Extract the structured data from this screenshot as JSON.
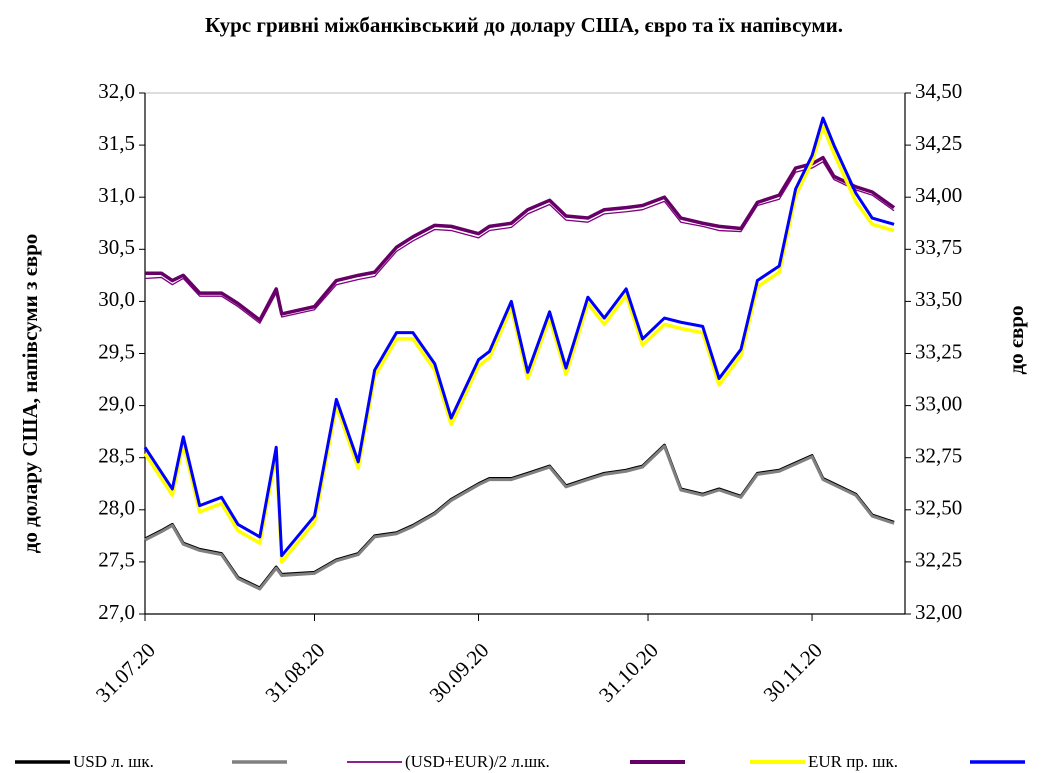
{
  "chart_data": {
    "type": "line",
    "title": "Курс гривні міжбанківський до долару США, євро та їх напівсуми.",
    "y_label": "до долару США, напівсуми з євро",
    "y2_label": "до євро",
    "x": [
      "2020-07-31",
      "2020-08-03",
      "2020-08-05",
      "2020-08-07",
      "2020-08-10",
      "2020-08-14",
      "2020-08-17",
      "2020-08-21",
      "2020-08-24",
      "2020-08-25",
      "2020-08-31",
      "2020-09-04",
      "2020-09-08",
      "2020-09-11",
      "2020-09-15",
      "2020-09-18",
      "2020-09-22",
      "2020-09-25",
      "2020-09-30",
      "2020-10-02",
      "2020-10-06",
      "2020-10-09",
      "2020-10-13",
      "2020-10-16",
      "2020-10-20",
      "2020-10-23",
      "2020-10-27",
      "2020-10-30",
      "2020-11-03",
      "2020-11-06",
      "2020-11-10",
      "2020-11-13",
      "2020-11-17",
      "2020-11-20",
      "2020-11-24",
      "2020-11-27",
      "2020-11-30",
      "2020-12-02",
      "2020-12-04",
      "2020-12-08",
      "2020-12-11",
      "2020-12-15"
    ],
    "xlim": [
      "2020-07-31",
      "2020-12-17"
    ],
    "xticks": [
      {
        "value": "2020-07-31",
        "label": "31.07.20"
      },
      {
        "value": "2020-08-31",
        "label": "31.08.20"
      },
      {
        "value": "2020-09-30",
        "label": "30.09.20"
      },
      {
        "value": "2020-10-31",
        "label": "31.10.20"
      },
      {
        "value": "2020-11-30",
        "label": "30.11.20"
      }
    ],
    "ylim": [
      27,
      32
    ],
    "yticks": [
      {
        "value": 27,
        "label": "27,0"
      },
      {
        "value": 27.5,
        "label": "27,5"
      },
      {
        "value": 28,
        "label": "28,0"
      },
      {
        "value": 28.5,
        "label": "28,5"
      },
      {
        "value": 29,
        "label": "29,0"
      },
      {
        "value": 29.5,
        "label": "29,5"
      },
      {
        "value": 30,
        "label": "30,0"
      },
      {
        "value": 30.5,
        "label": "30,5"
      },
      {
        "value": 31,
        "label": "31,0"
      },
      {
        "value": 31.5,
        "label": "31,5"
      },
      {
        "value": 32,
        "label": "32,0"
      }
    ],
    "y2lim": [
      32,
      34.5
    ],
    "y2ticks": [
      {
        "value": 32,
        "label": "32,00"
      },
      {
        "value": 32.25,
        "label": "32,25"
      },
      {
        "value": 32.5,
        "label": "32,50"
      },
      {
        "value": 32.75,
        "label": "32,75"
      },
      {
        "value": 33,
        "label": "33,00"
      },
      {
        "value": 33.25,
        "label": "33,25"
      },
      {
        "value": 33.5,
        "label": "33,50"
      },
      {
        "value": 33.75,
        "label": "33,75"
      },
      {
        "value": 34,
        "label": "34,00"
      },
      {
        "value": 34.25,
        "label": "34,25"
      },
      {
        "value": 34.5,
        "label": "34,50"
      }
    ],
    "grid": false,
    "legend": "bottom",
    "series": [
      {
        "name": "USD л. шк.",
        "color": "#000000",
        "width": 3,
        "values": [
          27.72,
          27.8,
          27.86,
          27.68,
          27.62,
          27.58,
          27.35,
          27.25,
          27.45,
          27.38,
          27.4,
          27.52,
          27.58,
          27.75,
          27.78,
          27.85,
          27.97,
          28.1,
          28.25,
          28.3,
          28.3,
          28.35,
          28.42,
          28.23,
          28.3,
          28.35,
          28.38,
          28.42,
          28.62,
          28.2,
          28.15,
          28.2,
          28.13,
          28.35,
          28.38,
          28.45,
          28.52,
          28.3,
          28.25,
          28.15,
          27.95,
          27.88
        ]
      },
      {
        "name": null,
        "color": "#808080",
        "width": 3,
        "values": [
          27.71,
          27.79,
          27.85,
          27.67,
          27.61,
          27.57,
          27.34,
          27.24,
          27.44,
          27.37,
          27.39,
          27.51,
          27.57,
          27.74,
          27.77,
          27.84,
          27.96,
          28.09,
          28.24,
          28.29,
          28.29,
          28.34,
          28.41,
          28.22,
          28.29,
          28.34,
          28.37,
          28.41,
          28.61,
          28.19,
          28.14,
          28.19,
          28.12,
          28.34,
          28.37,
          28.44,
          28.51,
          28.29,
          28.24,
          28.14,
          27.94,
          27.87
        ]
      },
      {
        "name": "(USD+EUR)/2 л.шк.",
        "color": "#800080",
        "width": 1.3,
        "values": [
          30.22,
          30.23,
          30.16,
          30.22,
          30.05,
          30.05,
          29.95,
          29.79,
          30.08,
          29.85,
          29.92,
          30.16,
          30.21,
          30.24,
          30.48,
          30.58,
          30.69,
          30.68,
          30.61,
          30.68,
          30.71,
          30.84,
          30.93,
          30.78,
          30.76,
          30.84,
          30.86,
          30.88,
          30.96,
          30.76,
          30.72,
          30.68,
          30.67,
          30.92,
          30.98,
          31.24,
          31.28,
          31.34,
          31.17,
          31.07,
          31.02,
          30.87
        ]
      },
      {
        "name": null,
        "color": "#660066",
        "width": 3.5,
        "values": [
          30.27,
          30.27,
          30.2,
          30.25,
          30.08,
          30.08,
          29.98,
          29.82,
          30.12,
          29.88,
          29.95,
          30.2,
          30.25,
          30.28,
          30.52,
          30.62,
          30.73,
          30.72,
          30.65,
          30.72,
          30.75,
          30.88,
          30.97,
          30.82,
          30.8,
          30.88,
          30.9,
          30.92,
          31.0,
          30.8,
          30.75,
          30.72,
          30.7,
          30.95,
          31.02,
          31.28,
          31.32,
          31.38,
          31.2,
          31.1,
          31.05,
          30.9
        ]
      },
      {
        "name": "EUR пр. шк.",
        "color": "#ffff00",
        "width": 3.5,
        "axis": "y2",
        "values": [
          32.77,
          32.65,
          32.57,
          32.82,
          32.49,
          32.53,
          32.4,
          32.34,
          32.77,
          32.25,
          32.44,
          33.0,
          32.7,
          33.14,
          33.32,
          33.32,
          33.17,
          32.91,
          33.19,
          33.23,
          33.47,
          33.13,
          33.42,
          33.15,
          33.49,
          33.39,
          33.53,
          33.29,
          33.39,
          33.37,
          33.35,
          33.1,
          33.24,
          33.57,
          33.64,
          34.01,
          34.17,
          34.34,
          34.21,
          33.98,
          33.87,
          33.84
        ]
      },
      {
        "name": null,
        "color": "#0000ff",
        "width": 3,
        "axis": "y2",
        "values": [
          32.8,
          32.68,
          32.6,
          32.85,
          32.52,
          32.56,
          32.43,
          32.37,
          32.8,
          32.28,
          32.47,
          33.03,
          32.73,
          33.17,
          33.35,
          33.35,
          33.2,
          32.94,
          33.22,
          33.26,
          33.5,
          33.16,
          33.45,
          33.18,
          33.52,
          33.42,
          33.56,
          33.32,
          33.42,
          33.4,
          33.38,
          33.13,
          33.27,
          33.6,
          33.67,
          34.04,
          34.2,
          34.38,
          34.25,
          34.02,
          33.9,
          33.87
        ]
      }
    ]
  }
}
